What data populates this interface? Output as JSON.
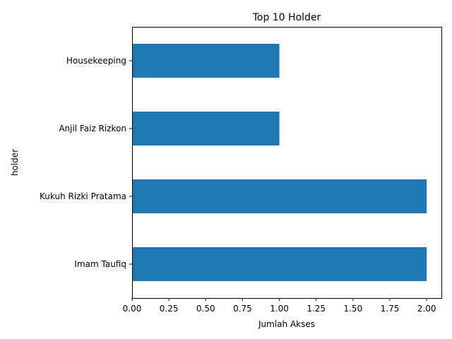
{
  "chart_data": {
    "type": "bar",
    "orientation": "horizontal",
    "title": "Top 10 Holder",
    "xlabel": "Jumlah Akses",
    "ylabel": "holder",
    "categories": [
      "Imam Taufiq",
      "Kukuh Rizki Pratama",
      "Anjil Faiz Rizkon",
      "Housekeeping"
    ],
    "values": [
      2,
      2,
      1,
      1
    ],
    "xlim": [
      0,
      2.1
    ],
    "xticks": [
      "0.00",
      "0.25",
      "0.50",
      "0.75",
      "1.00",
      "1.25",
      "1.50",
      "1.75",
      "2.00"
    ],
    "grid": false,
    "legend": "none",
    "bar_color": "#1f77b4"
  }
}
